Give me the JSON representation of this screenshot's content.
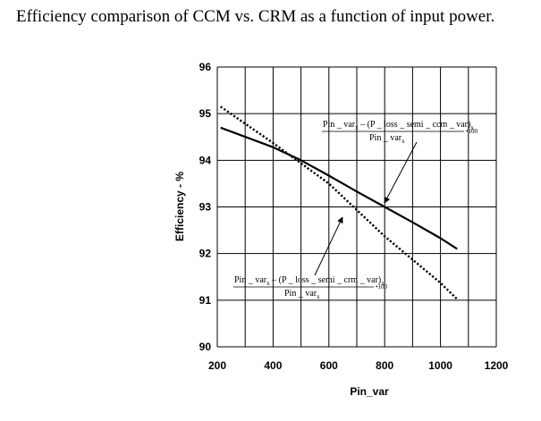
{
  "figure": {
    "caption": "Efficiency comparison of CCM vs. CRM as a function of input power."
  },
  "chart_data": {
    "type": "line",
    "xlabel": "Pin_var",
    "ylabel": "Efficiency - %",
    "xlim": [
      200,
      1200
    ],
    "ylim": [
      90,
      96
    ],
    "xticks": [
      "200",
      "400",
      "600",
      "800",
      "1000",
      "1200"
    ],
    "yticks": [
      "90",
      "91",
      "92",
      "93",
      "94",
      "95",
      "96"
    ],
    "grid": true,
    "series": [
      {
        "style": "solid",
        "x": [
          212,
          400,
          500,
          600,
          700,
          800,
          900,
          1000,
          1060
        ],
        "y": [
          94.7,
          94.28,
          94.0,
          93.67,
          93.33,
          93.0,
          92.67,
          92.33,
          92.1
        ]
      },
      {
        "style": "dotted",
        "x": [
          212,
          400,
          600,
          800,
          1000,
          1060
        ],
        "y": [
          95.15,
          94.37,
          93.5,
          92.37,
          91.37,
          91.02
        ]
      }
    ],
    "annotations": [
      {
        "numerator_parts": [
          "Pin _ var",
          "x",
          " – (P _ loss _ semi _ ccm _ var)",
          "x"
        ],
        "denominator_parts": [
          "Pin _ var",
          "x"
        ],
        "multiplier": "•100"
      },
      {
        "numerator_parts": [
          "Pin _ var",
          "x",
          " – (P _ loss _ semi _ crm _ var)",
          "x"
        ],
        "denominator_parts": [
          "Pin _ var",
          "x"
        ],
        "multiplier": "•100"
      }
    ]
  }
}
